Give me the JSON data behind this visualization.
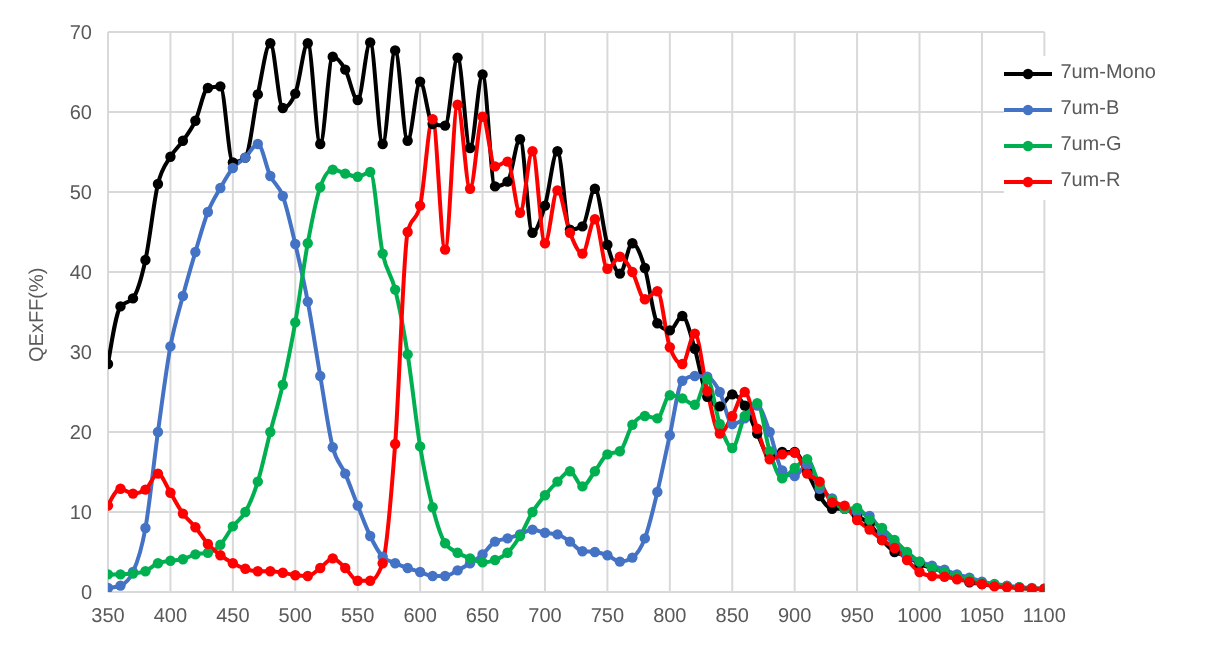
{
  "chart_data": {
    "type": "line",
    "ylabel": "QExFF(%)",
    "x": [
      350,
      360,
      370,
      380,
      390,
      400,
      410,
      420,
      430,
      440,
      450,
      460,
      470,
      480,
      490,
      500,
      510,
      520,
      530,
      540,
      550,
      560,
      570,
      580,
      590,
      600,
      610,
      620,
      630,
      640,
      650,
      660,
      670,
      680,
      690,
      700,
      710,
      720,
      730,
      740,
      750,
      760,
      770,
      780,
      790,
      800,
      810,
      820,
      830,
      840,
      850,
      860,
      870,
      880,
      890,
      900,
      910,
      920,
      930,
      940,
      950,
      960,
      970,
      980,
      990,
      1000,
      1010,
      1020,
      1030,
      1040,
      1050,
      1060,
      1070,
      1080,
      1090,
      1100
    ],
    "series": [
      {
        "name": "7um-Mono",
        "color": "#000000",
        "values": [
          28.5,
          35.7,
          36.7,
          41.5,
          51,
          54.4,
          56.4,
          58.9,
          63,
          63.2,
          53.7,
          54.3,
          62.2,
          68.6,
          60.5,
          62.3,
          68.6,
          56,
          66.9,
          65.3,
          61.5,
          68.7,
          56,
          67.7,
          56.4,
          63.8,
          58.5,
          58.3,
          66.8,
          55.5,
          64.7,
          50.7,
          51.3,
          56.6,
          44.9,
          48.3,
          55.1,
          45.3,
          45.7,
          50.4,
          43.4,
          39.8,
          43.6,
          40.5,
          33.6,
          32.7,
          34.5,
          30.4,
          24.4,
          23.2,
          24.7,
          23.3,
          19.8,
          17,
          17.5,
          17.5,
          15,
          12,
          10.4,
          10.4,
          9.5,
          8.5,
          6.5,
          5,
          4.5,
          3.5,
          3,
          2.5,
          2,
          1.2,
          1,
          0.8,
          0.7,
          0.5,
          0.4,
          0.3
        ]
      },
      {
        "name": "7um-B",
        "color": "#4472c4",
        "values": [
          0.5,
          0.8,
          2.5,
          8,
          20,
          30.7,
          37,
          42.5,
          47.5,
          50.5,
          53,
          54.3,
          56,
          52,
          49.5,
          43.5,
          36.3,
          27,
          18.1,
          14.8,
          10.8,
          7,
          4.4,
          3.6,
          3,
          2.5,
          2,
          2,
          2.7,
          3.6,
          4.7,
          6.3,
          6.7,
          7.2,
          7.8,
          7.4,
          7.2,
          6.3,
          5.1,
          5,
          4.6,
          3.8,
          4.3,
          6.7,
          12.5,
          19.6,
          26.4,
          27,
          26.9,
          25,
          21,
          21.7,
          23.3,
          20,
          15.2,
          14.5,
          15.9,
          12.9,
          11.7,
          10.4,
          10,
          9.5,
          7.5,
          6,
          4.5,
          3.8,
          3.3,
          2.8,
          2.2,
          1.8,
          1.3,
          1,
          0.8,
          0.6,
          0.5,
          0.4
        ]
      },
      {
        "name": "7um-G",
        "color": "#00b050",
        "values": [
          2.2,
          2.2,
          2.3,
          2.6,
          3.6,
          3.9,
          4.1,
          4.7,
          4.9,
          5.9,
          8.2,
          10,
          13.8,
          20,
          25.9,
          33.7,
          43.6,
          50.6,
          52.8,
          52.3,
          51.9,
          52.5,
          42.3,
          37.8,
          29.7,
          18.2,
          10.6,
          6.1,
          4.9,
          4.2,
          3.7,
          4,
          4.9,
          7,
          10,
          12.1,
          13.8,
          15.1,
          13.2,
          15.1,
          17.2,
          17.6,
          20.9,
          22,
          21.7,
          24.6,
          24.2,
          23.4,
          26.6,
          21,
          18,
          22,
          23.6,
          17.6,
          14.2,
          15.5,
          16.6,
          13.4,
          11.5,
          10.4,
          10.5,
          9,
          8,
          6.5,
          5,
          3.8,
          3,
          2.5,
          2,
          1.6,
          1.1,
          0.9,
          0.7,
          0.6,
          0.4,
          0.4
        ]
      },
      {
        "name": "7um-R",
        "color": "#ff0000",
        "values": [
          10.8,
          12.9,
          12.3,
          12.8,
          14.8,
          12.4,
          9.8,
          8.1,
          6,
          4.6,
          3.6,
          2.9,
          2.6,
          2.6,
          2.4,
          2.1,
          2,
          3,
          4.2,
          3,
          1.4,
          1.4,
          3.6,
          18.5,
          45,
          48.3,
          59.1,
          42.8,
          60.9,
          50.4,
          59.4,
          53.2,
          53.8,
          47.4,
          55.1,
          43.6,
          50.2,
          44.9,
          42.3,
          46.6,
          40.4,
          41.9,
          40,
          36.6,
          37.6,
          30.6,
          28.5,
          32.3,
          25.1,
          19.8,
          22,
          25,
          20.4,
          16.6,
          17.2,
          17.4,
          14.8,
          13.8,
          11.2,
          10.8,
          9,
          7.8,
          6.5,
          5.5,
          4,
          2.5,
          2,
          1.9,
          1.6,
          1.3,
          1,
          0.7,
          0.6,
          0.5,
          0.4,
          0.4
        ]
      }
    ],
    "xlim": [
      350,
      1100
    ],
    "xticks": [
      350,
      400,
      450,
      500,
      550,
      600,
      650,
      700,
      750,
      800,
      850,
      900,
      950,
      1000,
      1050,
      1100
    ],
    "ylim": [
      0,
      70
    ],
    "yticks": [
      0,
      10,
      20,
      30,
      40,
      50,
      60,
      70
    ],
    "grid": true,
    "legend": "top right",
    "marker": "circle",
    "line_style": "solid"
  }
}
